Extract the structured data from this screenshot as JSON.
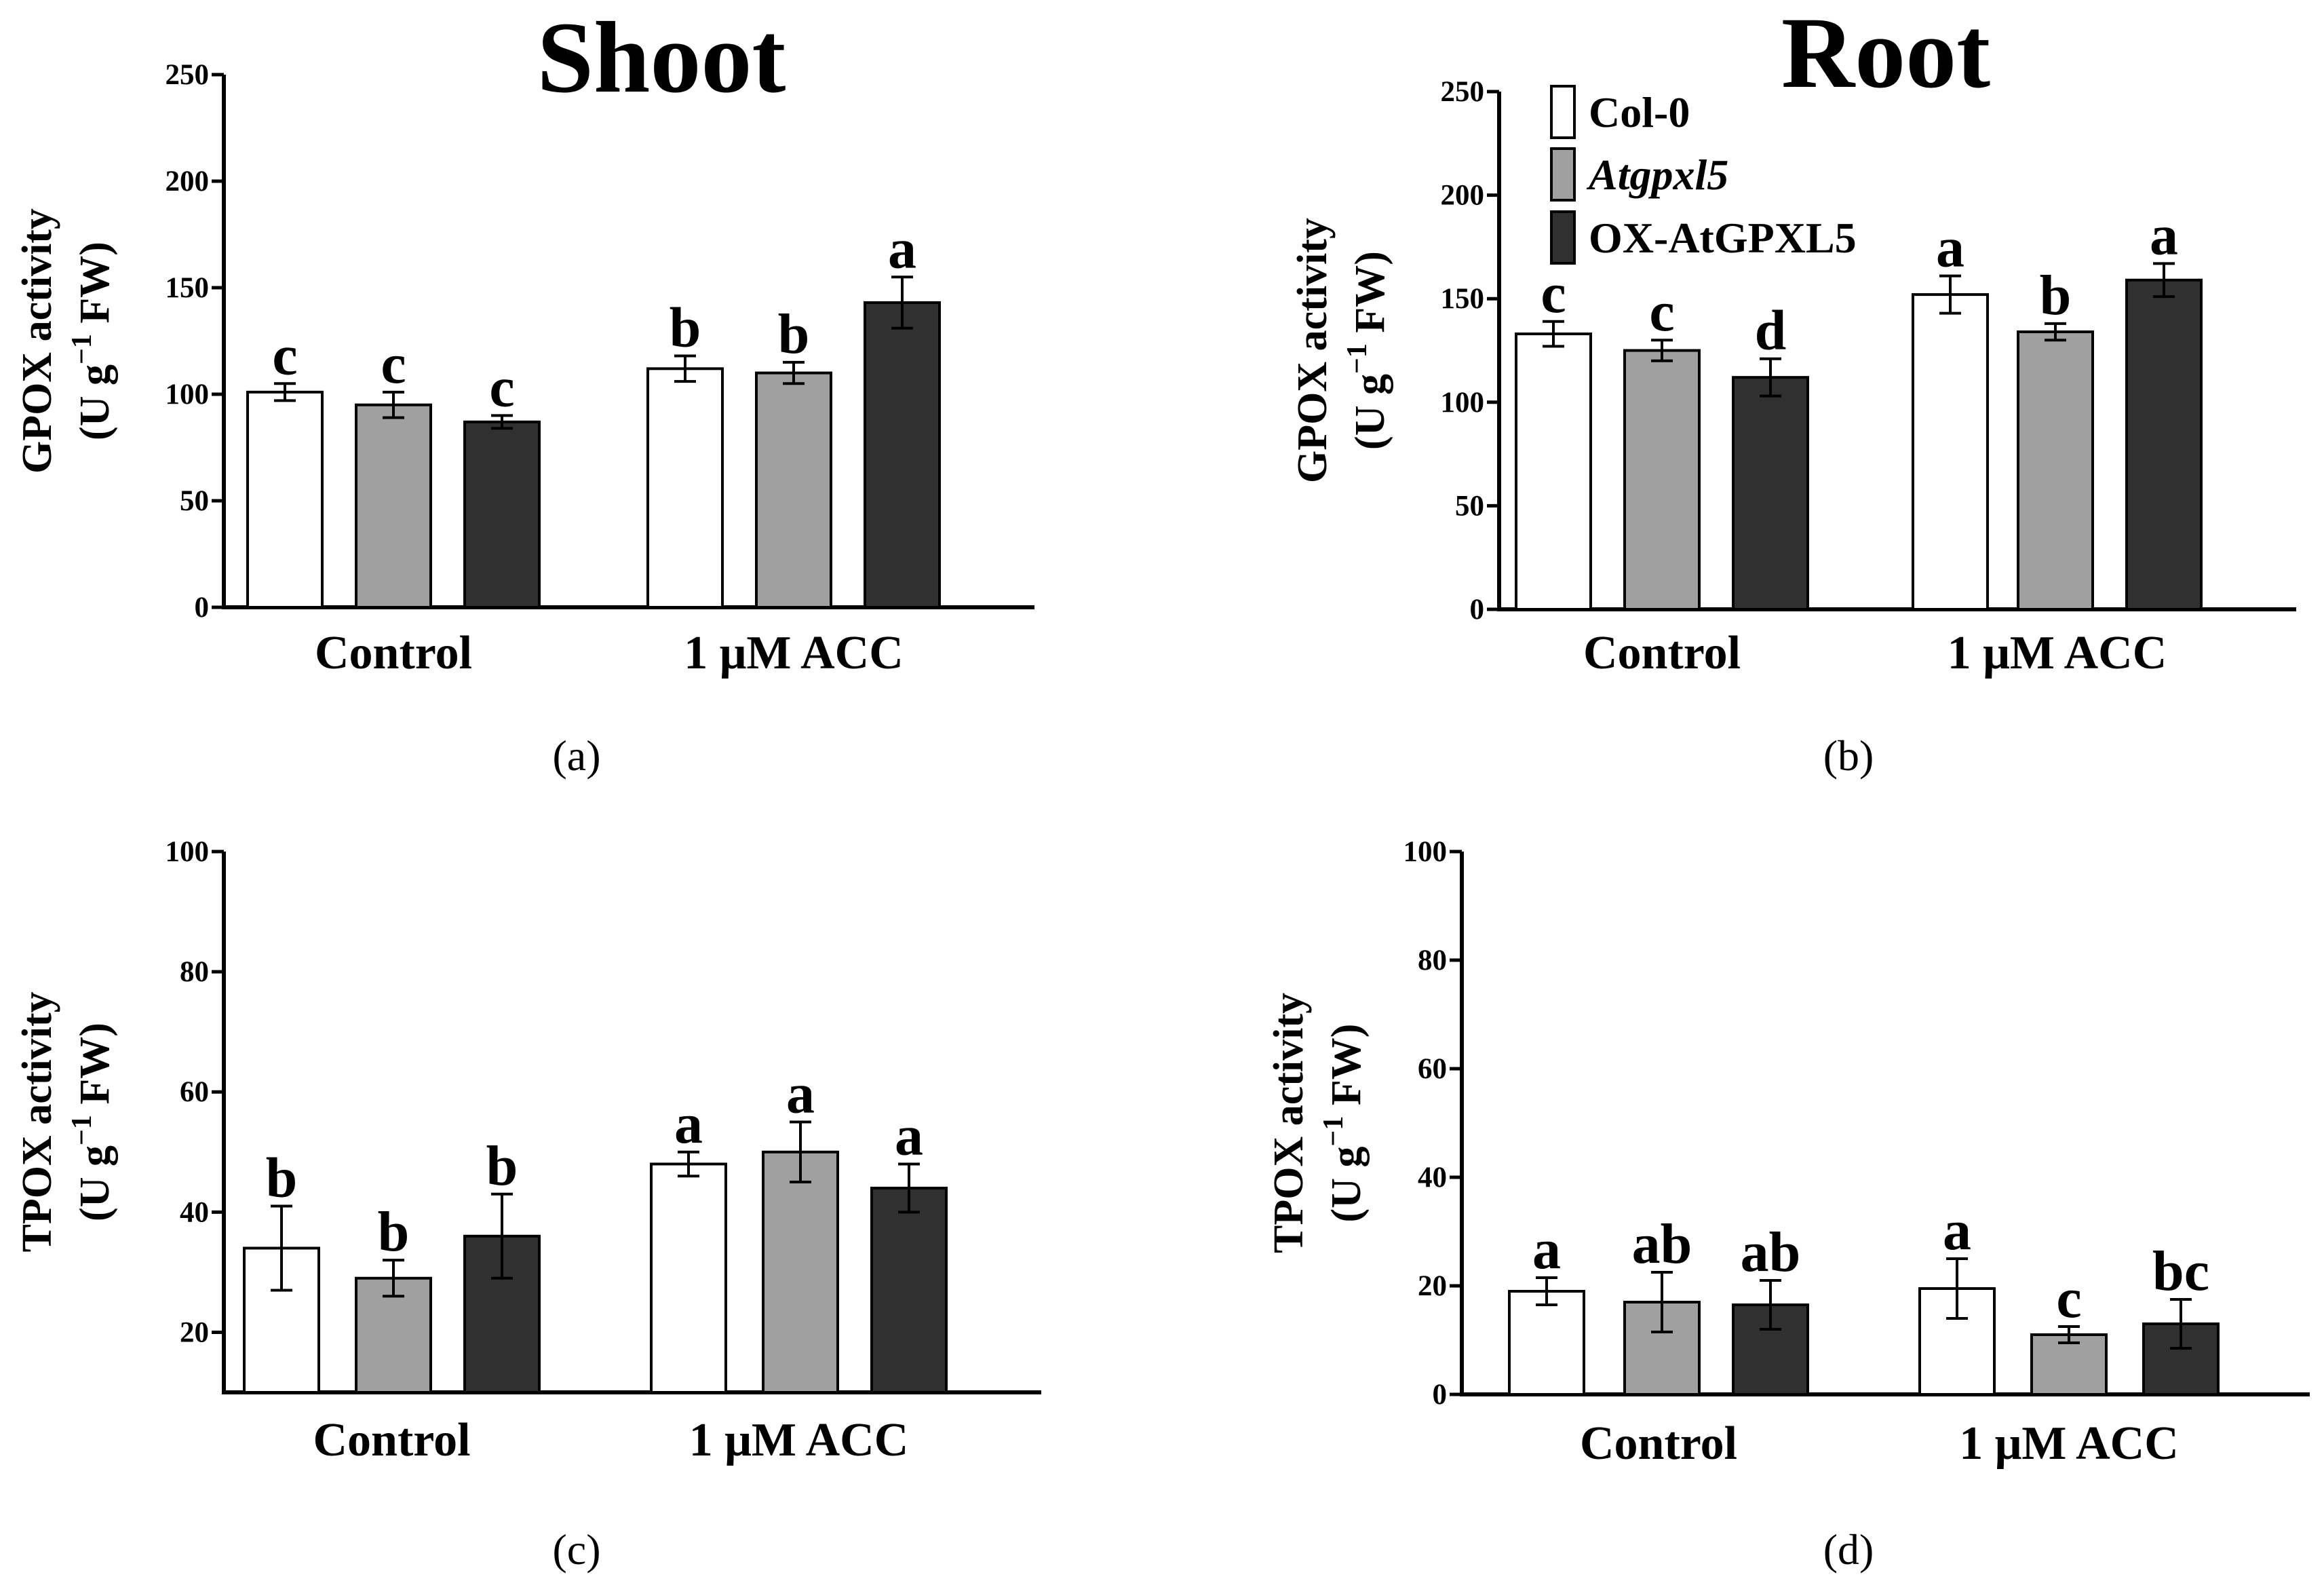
{
  "colors": {
    "series": [
      "#ffffff",
      "#a0a0a0",
      "#303030"
    ],
    "stroke": "#000000",
    "background": "#ffffff"
  },
  "legend": {
    "items": [
      {
        "label": "Col-0",
        "italic": false
      },
      {
        "label": "Atgpxl5",
        "italic": true
      },
      {
        "label": "OX-AtGPXL5",
        "italic": false
      }
    ]
  },
  "chart_data": [
    {
      "panel": "(a)",
      "title": "Shoot",
      "type": "bar",
      "ylabel_line1": "GPOX activity",
      "ylabel_line2_prefix": "(U g",
      "ylabel_line2_sup": "−1",
      "ylabel_line2_suffix": " FW)",
      "ylim": [
        0,
        250
      ],
      "yticks": [
        "0",
        "50",
        "100",
        "150",
        "200",
        "250"
      ],
      "categories": [
        "Control",
        "1 μM ACC"
      ],
      "series": [
        {
          "name": "Col-0",
          "values": [
            101,
            112
          ],
          "errors": [
            4,
            6
          ],
          "letters": [
            "c",
            "b"
          ]
        },
        {
          "name": "Atgpxl5",
          "values": [
            95,
            110
          ],
          "errors": [
            6,
            5
          ],
          "letters": [
            "c",
            "b"
          ]
        },
        {
          "name": "OX-AtGPXL5",
          "values": [
            87,
            143
          ],
          "errors": [
            3,
            12
          ],
          "letters": [
            "c",
            "a"
          ]
        }
      ]
    },
    {
      "panel": "(b)",
      "title": "Root",
      "type": "bar",
      "ylabel_line1": "GPOX activity",
      "ylabel_line2_prefix": "(U g",
      "ylabel_line2_sup": "−1",
      "ylabel_line2_suffix": " FW)",
      "ylim": [
        0,
        250
      ],
      "yticks": [
        "0",
        "50",
        "100",
        "150",
        "200",
        "250"
      ],
      "categories": [
        "Control",
        "1 μM ACC"
      ],
      "series": [
        {
          "name": "Col-0",
          "values": [
            133,
            152
          ],
          "errors": [
            6,
            9
          ],
          "letters": [
            "c",
            "a"
          ]
        },
        {
          "name": "Atgpxl5",
          "values": [
            125,
            134
          ],
          "errors": [
            5,
            4
          ],
          "letters": [
            "c",
            "b"
          ]
        },
        {
          "name": "OX-AtGPXL5",
          "values": [
            112,
            159
          ],
          "errors": [
            9,
            8
          ],
          "letters": [
            "d",
            "a"
          ]
        }
      ]
    },
    {
      "panel": "(c)",
      "title": "",
      "type": "bar",
      "ylabel_line1": "TPOX activity",
      "ylabel_line2_prefix": "(U g",
      "ylabel_line2_sup": "−1",
      "ylabel_line2_suffix": " FW)",
      "ylim": [
        10,
        100
      ],
      "yticks": [
        "20",
        "40",
        "60",
        "80",
        "100"
      ],
      "categories": [
        "Control",
        "1 μM ACC"
      ],
      "series": [
        {
          "name": "Col-0",
          "values": [
            34,
            48
          ],
          "errors": [
            7,
            2
          ],
          "letters": [
            "b",
            "a"
          ]
        },
        {
          "name": "Atgpxl5",
          "values": [
            29,
            50
          ],
          "errors": [
            3,
            5
          ],
          "letters": [
            "b",
            "a"
          ]
        },
        {
          "name": "OX-AtGPXL5",
          "values": [
            36,
            44
          ],
          "errors": [
            7,
            4
          ],
          "letters": [
            "b",
            "a"
          ]
        }
      ]
    },
    {
      "panel": "(d)",
      "title": "",
      "type": "bar",
      "ylabel_line1": "TPOX activity",
      "ylabel_line2_prefix": "(U g",
      "ylabel_line2_sup": "−1",
      "ylabel_line2_suffix": " FW)",
      "ylim": [
        0,
        100
      ],
      "yticks": [
        "0",
        "20",
        "40",
        "60",
        "80",
        "100"
      ],
      "categories": [
        "Control",
        "1 μM ACC"
      ],
      "series": [
        {
          "name": "Col-0",
          "values": [
            19,
            19.5
          ],
          "errors": [
            2.5,
            5.5
          ],
          "letters": [
            "a",
            "a"
          ]
        },
        {
          "name": "Atgpxl5",
          "values": [
            17,
            11
          ],
          "errors": [
            5.5,
            1.5
          ],
          "letters": [
            "ab",
            "c"
          ]
        },
        {
          "name": "OX-AtGPXL5",
          "values": [
            16.5,
            13
          ],
          "errors": [
            4.5,
            4.5
          ],
          "letters": [
            "ab",
            "bc"
          ]
        }
      ]
    }
  ]
}
